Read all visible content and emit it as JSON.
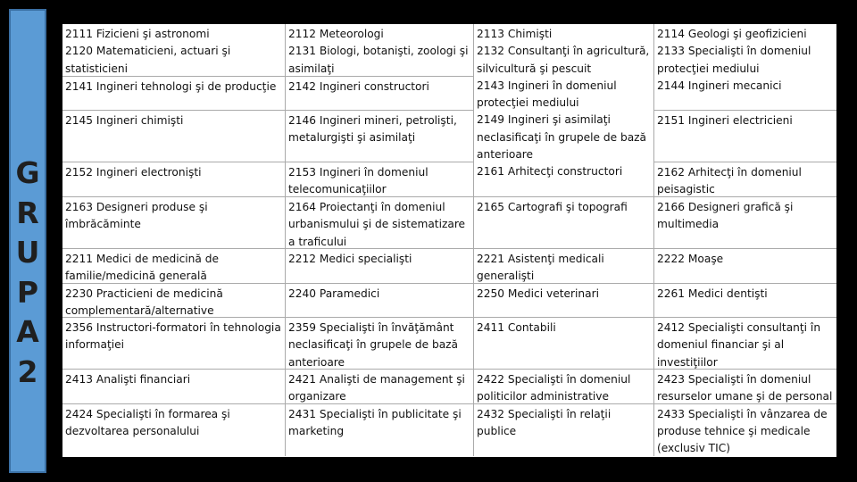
{
  "sidebar": {
    "letters": [
      "G",
      "R",
      "U",
      "P",
      "A",
      "2"
    ]
  },
  "cells": {
    "r1c1": "2111 Fizicieni şi astronomi\n2120 Matematicieni, actuari şi statisticieni",
    "r1c2": "2112 Meteorologi\n2131 Biologi, botanişti, zoologi şi asimilaţi",
    "r1c3": "2113 Chimişti\n2132 Consultanţi în agricultură, silvicultură şi pescuit\n2143 Ingineri în domeniul protecţiei mediului\n2149 Ingineri şi asimilaţi neclasificaţi în grupele de bază anterioare\n2161 Arhitecţi constructori",
    "r1c4": "2114 Geologi şi geofizicieni\n2133 Specialişti în domeniul protecţiei mediului\n2144 Ingineri mecanici",
    "r2c1": "2141 Ingineri tehnologi şi de producţie",
    "r2c2": "2142 Ingineri constructori",
    "r3c1": "2145 Ingineri chimişti",
    "r3c2": "2146 Ingineri mineri, petrolişti, metalurgişti şi asimilaţi",
    "r3c4": "2151 Ingineri electricieni",
    "r4c1": "2152 Ingineri electronişti",
    "r4c2": "2153 Ingineri în domeniul telecomunicaţiilor",
    "r4c4": "2162 Arhitecţi în domeniul peisagistic",
    "r5c1": "2163 Designeri produse şi îmbrăcăminte",
    "r5c2": "2164 Proiectanţi în domeniul urbanismului şi de sistematizare a traficului",
    "r5c3": "2165 Cartografi şi topografi",
    "r5c4": "2166 Designeri grafică şi multimedia",
    "r6c1": "2211 Medici de medicină de familie/medicină generală",
    "r6c2": "2212 Medici specialişti",
    "r6c3": "2221 Asistenţi medicali generalişti",
    "r6c4": "2222 Moaşe",
    "r7c1": "2230 Practicieni de medicină complementară/alternative",
    "r7c2": "2240 Paramedici",
    "r7c3": "2250 Medici veterinari",
    "r7c4": "2261 Medici dentişti",
    "r8c1": "2356 Instructori-formatori în tehnologia informaţiei",
    "r8c2": "2359 Specialişti în învăţământ neclasificaţi în grupele de bază anterioare",
    "r8c3": "2411 Contabili",
    "r8c4": "2412 Specialişti consultanţi în domeniul financiar şi al investiţiilor",
    "r9c1": "2413 Analişti financiari",
    "r9c2": "2421 Analişti de management şi organizare",
    "r9c3": "2422 Specialişti în domeniul politicilor administrative",
    "r9c4": "2423 Specialişti în domeniul resurselor umane şi de personal",
    "r10c1": "2424 Specialişti în formarea şi dezvoltarea personalului",
    "r10c2": "2431 Specialişti în publicitate şi marketing",
    "r10c3": "2432 Specialişti în relaţii publice",
    "r10c4": "2433 Specialişti în vânzarea de produse tehnice şi medicale (exclusiv TIC)"
  }
}
